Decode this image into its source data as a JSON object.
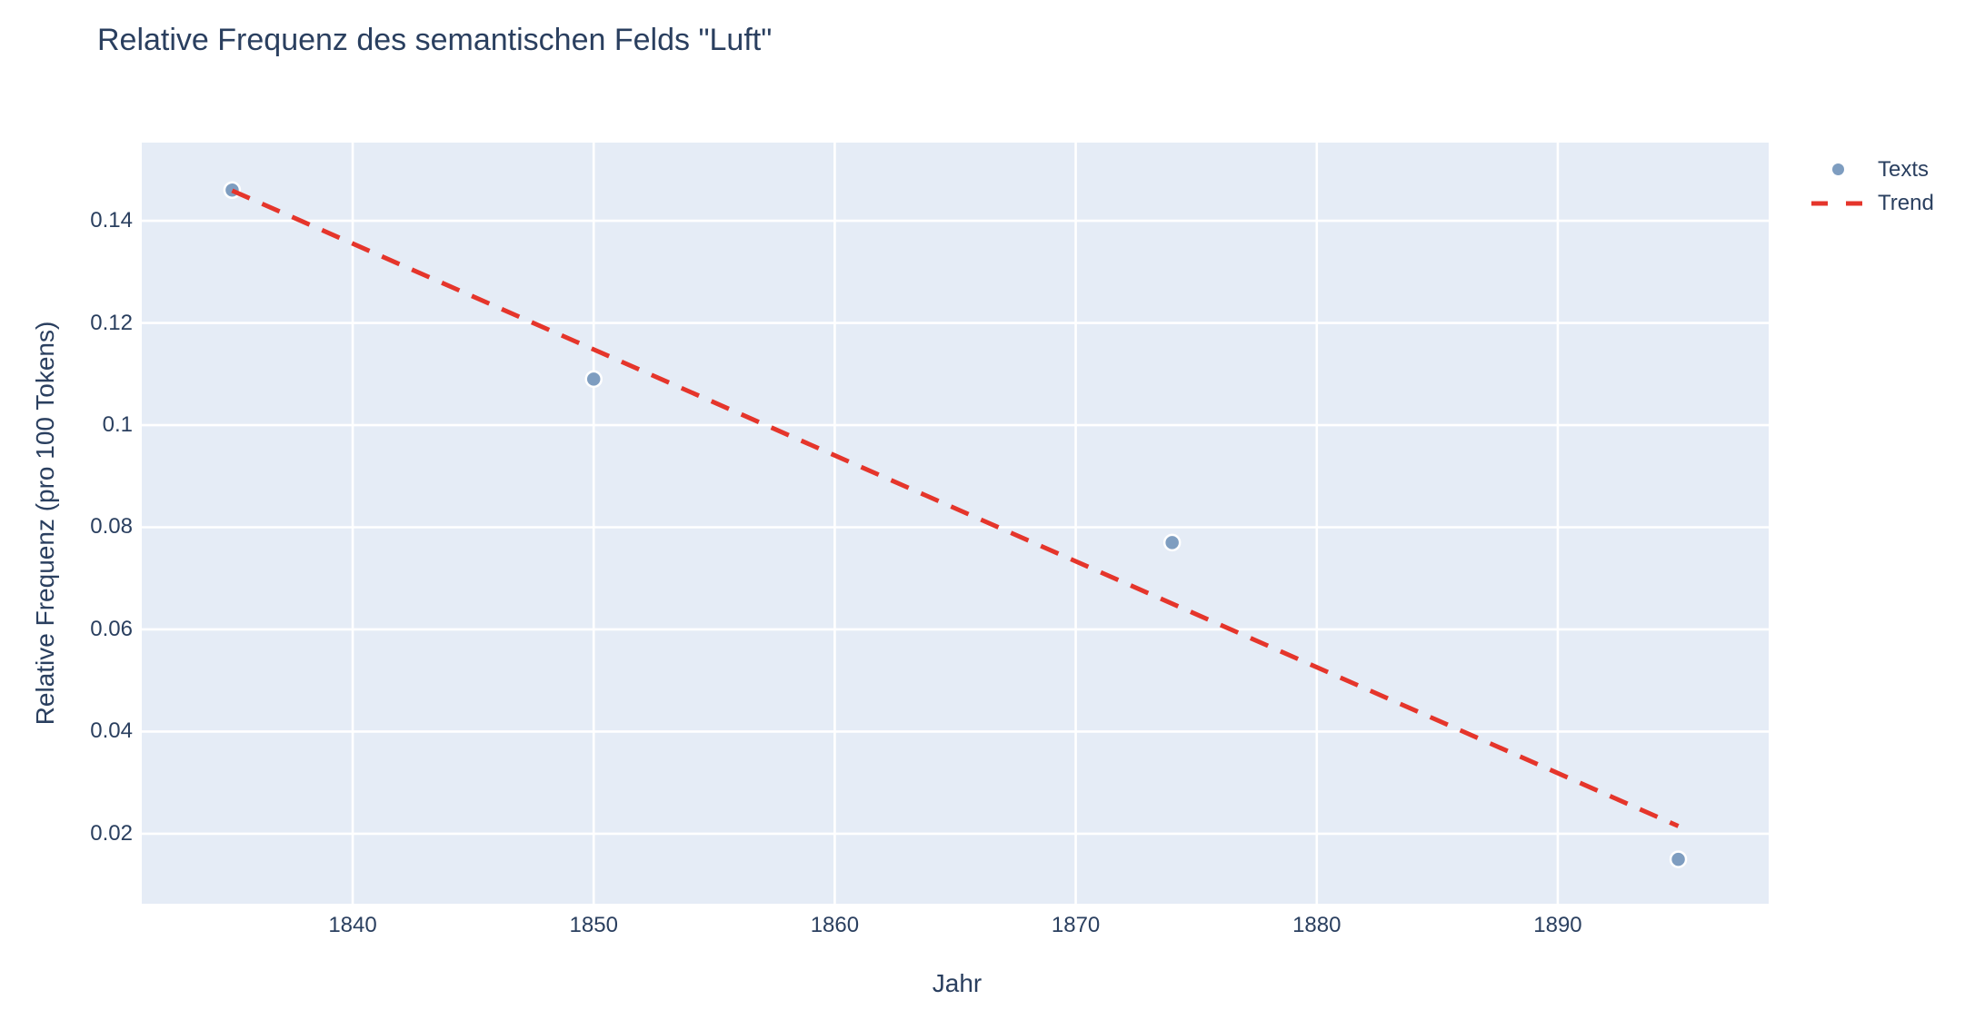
{
  "page": {
    "title": "Relative Frequenz des semantischen Felds \"Luft\""
  },
  "colors": {
    "text": "#2a3f5f",
    "page_bg": "#ffffff",
    "plot_bg": "#e5ecf6",
    "grid": "#ffffff",
    "marker": "#7e9dc0",
    "marker_outline": "#ffffff",
    "trend": "#e5352b"
  },
  "legend": {
    "items": [
      {
        "label": "Texts",
        "sample": "dot-marker"
      },
      {
        "label": "Trend",
        "sample": "dashed-line"
      }
    ]
  },
  "chart_data": {
    "type": "scatter",
    "title": "Relative Frequenz des semantischen Felds \"Luft\"",
    "xlabel": "Jahr",
    "ylabel": "Relative Frequenz (pro 100 Tokens)",
    "xlim": [
      1831.25,
      1898.75
    ],
    "ylim": [
      0.0063,
      0.1553
    ],
    "x_ticks": [
      1840,
      1850,
      1860,
      1870,
      1880,
      1890
    ],
    "y_ticks": [
      0.02,
      0.04,
      0.06,
      0.08,
      0.1,
      0.12,
      0.14
    ],
    "grid": true,
    "legend_position": "outside-top-right",
    "series": [
      {
        "name": "Texts",
        "type": "scatter",
        "color": "#7e9dc0",
        "x": [
          1835,
          1850,
          1874,
          1895
        ],
        "y": [
          0.146,
          0.109,
          0.077,
          0.015
        ]
      },
      {
        "name": "Trend",
        "type": "line-dashed",
        "color": "#e5352b",
        "x": [
          1835,
          1895
        ],
        "y": [
          0.1459,
          0.0215
        ]
      }
    ]
  }
}
